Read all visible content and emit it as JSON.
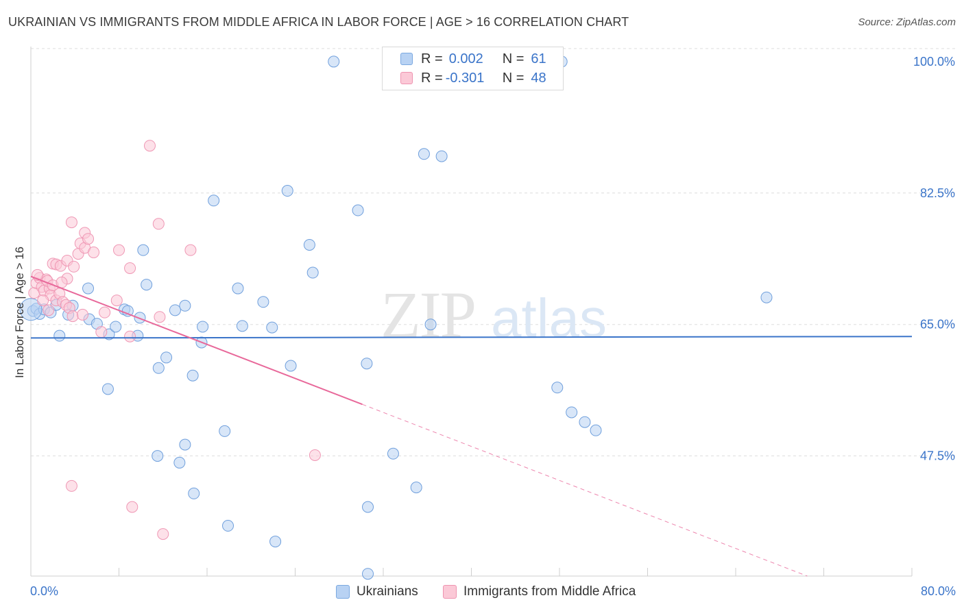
{
  "header": {
    "title": "UKRAINIAN VS IMMIGRANTS FROM MIDDLE AFRICA IN LABOR FORCE | AGE > 16 CORRELATION CHART",
    "source": "Source: ZipAtlas.com"
  },
  "colors": {
    "blue": "#3a74c9",
    "blue_fill": "#b8d2f3",
    "pink": "#e8689a",
    "pink_fill": "#fbc9d7",
    "axis_tick_color": "#3a74c9",
    "grid": "#dddddd"
  },
  "legend": {
    "r_label": "R =",
    "n_label": "N =",
    "series": [
      {
        "r": "0.002",
        "n": "61"
      },
      {
        "r": "-0.301",
        "n": "48"
      }
    ]
  },
  "watermark": {
    "part1": "ZIP",
    "part2": "atlas"
  },
  "chart_data": {
    "type": "scatter",
    "title": "UKRAINIAN VS IMMIGRANTS FROM MIDDLE AFRICA IN LABOR FORCE | AGE > 16 CORRELATION CHART",
    "xlabel": "",
    "ylabel": "In Labor Force | Age > 16",
    "xlim": [
      0,
      80
    ],
    "ylim": [
      31.5,
      102
    ],
    "x_tick_labels": [
      "0.0%",
      "80.0%"
    ],
    "y_ticks": [
      47.5,
      65.0,
      82.5,
      100.0
    ],
    "y_tick_labels": [
      "47.5%",
      "65.0%",
      "82.5%",
      "100.0%"
    ],
    "grid": true,
    "legend_position": "bottom",
    "series": [
      {
        "name": "Ukrainians",
        "r": 0.002,
        "n": 61,
        "trend": {
          "x0": 0,
          "y0": 63.2,
          "x1": 80,
          "y1": 63.4,
          "solid_until": 80
        },
        "points": [
          [
            0.2,
            66.8
          ],
          [
            0.5,
            67.1
          ],
          [
            0.8,
            66.4
          ],
          [
            1.2,
            67.0
          ],
          [
            1.8,
            66.6
          ],
          [
            2.3,
            67.6
          ],
          [
            3.4,
            66.3
          ],
          [
            3.8,
            67.5
          ],
          [
            2.6,
            63.5
          ],
          [
            5.3,
            65.7
          ],
          [
            6.0,
            65.1
          ],
          [
            7.1,
            63.7
          ],
          [
            7.7,
            64.7
          ],
          [
            9.7,
            63.5
          ],
          [
            8.5,
            67.0
          ],
          [
            8.8,
            66.8
          ],
          [
            9.9,
            65.9
          ],
          [
            10.5,
            70.3
          ],
          [
            10.2,
            74.9
          ],
          [
            5.2,
            69.8
          ],
          [
            11.6,
            59.2
          ],
          [
            12.3,
            60.6
          ],
          [
            13.1,
            66.9
          ],
          [
            14.0,
            67.5
          ],
          [
            14.7,
            58.2
          ],
          [
            15.5,
            62.6
          ],
          [
            15.6,
            64.7
          ],
          [
            16.6,
            81.5
          ],
          [
            17.6,
            50.8
          ],
          [
            18.8,
            69.8
          ],
          [
            21.1,
            68.0
          ],
          [
            21.9,
            64.6
          ],
          [
            23.3,
            82.8
          ],
          [
            23.6,
            59.5
          ],
          [
            25.3,
            75.6
          ],
          [
            25.6,
            71.9
          ],
          [
            27.5,
            100.0
          ],
          [
            29.7,
            80.2
          ],
          [
            30.5,
            59.8
          ],
          [
            32.9,
            47.8
          ],
          [
            35.7,
            87.7
          ],
          [
            37.3,
            87.4
          ],
          [
            36.3,
            65.0
          ],
          [
            35.0,
            43.3
          ],
          [
            48.2,
            100.0
          ],
          [
            47.8,
            56.6
          ],
          [
            49.1,
            53.3
          ],
          [
            50.3,
            52.0
          ],
          [
            51.3,
            50.9
          ],
          [
            66.8,
            68.6
          ],
          [
            7.0,
            56.4
          ],
          [
            11.5,
            47.5
          ],
          [
            13.5,
            46.6
          ],
          [
            14.0,
            49.0
          ],
          [
            14.8,
            42.5
          ],
          [
            17.9,
            38.2
          ],
          [
            22.2,
            36.1
          ],
          [
            30.6,
            40.7
          ],
          [
            30.6,
            31.8
          ],
          [
            19.2,
            64.8
          ],
          [
            0.0,
            67.0
          ]
        ]
      },
      {
        "name": "Immigrants from Middle Africa",
        "r": -0.301,
        "n": 48,
        "trend": {
          "x0": 0,
          "y0": 71.4,
          "x1": 70.5,
          "y1": 31.5,
          "solid_until": 30.1
        },
        "points": [
          [
            0.3,
            69.2
          ],
          [
            0.5,
            70.5
          ],
          [
            0.8,
            71.2
          ],
          [
            1.0,
            70.0
          ],
          [
            1.2,
            69.5
          ],
          [
            1.4,
            71.0
          ],
          [
            1.7,
            69.8
          ],
          [
            1.5,
            70.8
          ],
          [
            1.8,
            68.9
          ],
          [
            2.0,
            70.2
          ],
          [
            2.3,
            68.2
          ],
          [
            2.6,
            69.1
          ],
          [
            2.9,
            68.0
          ],
          [
            3.2,
            67.6
          ],
          [
            3.5,
            67.2
          ],
          [
            3.8,
            66.1
          ],
          [
            2.0,
            73.1
          ],
          [
            2.3,
            73.0
          ],
          [
            2.7,
            72.8
          ],
          [
            3.3,
            73.5
          ],
          [
            4.3,
            74.4
          ],
          [
            4.5,
            75.8
          ],
          [
            4.9,
            75.2
          ],
          [
            5.7,
            74.6
          ],
          [
            3.9,
            72.7
          ],
          [
            3.3,
            71.1
          ],
          [
            4.7,
            66.3
          ],
          [
            4.9,
            77.2
          ],
          [
            5.2,
            76.4
          ],
          [
            6.4,
            64.0
          ],
          [
            8.0,
            74.9
          ],
          [
            9.0,
            72.5
          ],
          [
            9.0,
            63.4
          ],
          [
            11.6,
            78.4
          ],
          [
            11.7,
            66.0
          ],
          [
            14.5,
            74.9
          ],
          [
            10.8,
            88.8
          ],
          [
            7.8,
            68.2
          ],
          [
            6.7,
            66.6
          ],
          [
            3.7,
            78.6
          ],
          [
            9.2,
            40.7
          ],
          [
            3.7,
            43.5
          ],
          [
            12.0,
            37.1
          ],
          [
            25.8,
            47.6
          ],
          [
            1.6,
            66.9
          ],
          [
            2.8,
            70.6
          ],
          [
            0.6,
            71.6
          ],
          [
            1.1,
            68.2
          ]
        ]
      }
    ]
  }
}
